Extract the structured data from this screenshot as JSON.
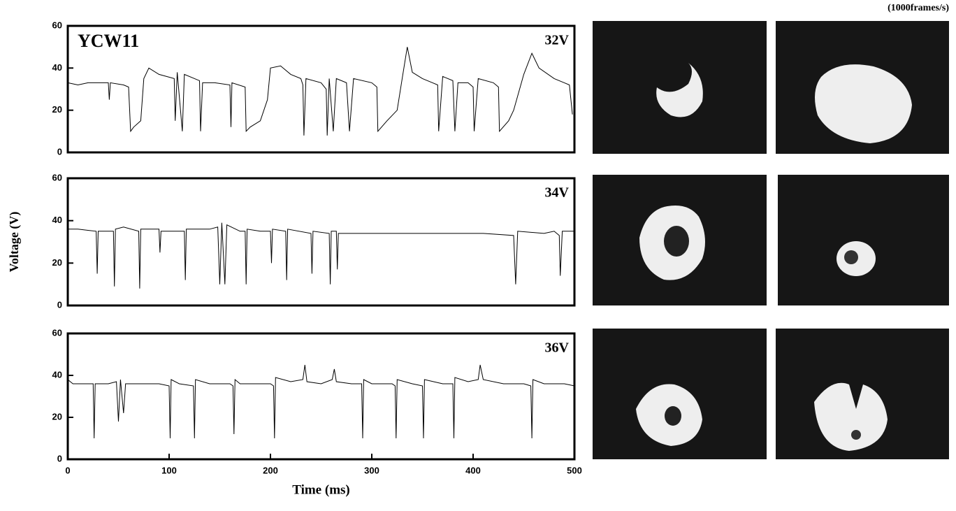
{
  "chart_data": [
    {
      "type": "line",
      "label": "YCW11",
      "setting": "32V",
      "annotation": "(1000frames/s)",
      "color": "#000000",
      "xlim": [
        0,
        500
      ],
      "ylim": [
        0,
        60
      ],
      "yticks": [
        0,
        20,
        40,
        60
      ],
      "x": [
        0,
        10,
        20,
        40,
        41,
        42,
        55,
        60,
        62,
        65,
        72,
        75,
        80,
        90,
        105,
        106,
        108,
        113,
        115,
        125,
        130,
        131,
        133,
        145,
        160,
        161,
        162,
        175,
        176,
        180,
        190,
        197,
        200,
        210,
        220,
        230,
        232,
        233,
        235,
        250,
        255,
        256,
        258,
        262,
        265,
        275,
        278,
        282,
        300,
        305,
        306,
        315,
        325,
        330,
        335,
        340,
        350,
        360,
        365,
        366,
        370,
        380,
        382,
        385,
        395,
        400,
        401,
        405,
        420,
        425,
        426,
        435,
        440,
        450,
        458,
        465,
        480,
        490,
        495,
        498
      ],
      "values": [
        33,
        32,
        33,
        33,
        25,
        33,
        32,
        31,
        10,
        12,
        15,
        35,
        40,
        37,
        35,
        15,
        38,
        10,
        37,
        35,
        34,
        10,
        33,
        33,
        32,
        12,
        33,
        31,
        10,
        12,
        15,
        25,
        40,
        41,
        37,
        35,
        32,
        8,
        35,
        33,
        30,
        8,
        35,
        10,
        35,
        33,
        10,
        35,
        33,
        31,
        10,
        15,
        20,
        35,
        50,
        38,
        35,
        33,
        32,
        10,
        36,
        34,
        10,
        33,
        33,
        31,
        10,
        35,
        33,
        31,
        10,
        15,
        20,
        37,
        47,
        40,
        35,
        33,
        32,
        18
      ]
    },
    {
      "type": "line",
      "setting": "34V",
      "ylabel": "Voltage (V)",
      "color": "#000000",
      "xlim": [
        0,
        500
      ],
      "ylim": [
        0,
        60
      ],
      "yticks": [
        0,
        20,
        40,
        60
      ],
      "x": [
        0,
        10,
        28,
        29,
        30,
        45,
        46,
        47,
        55,
        70,
        71,
        72,
        90,
        91,
        92,
        115,
        116,
        117,
        140,
        148,
        150,
        152,
        155,
        157,
        170,
        175,
        176,
        177,
        190,
        200,
        201,
        202,
        215,
        216,
        217,
        240,
        241,
        242,
        258,
        259,
        260,
        265,
        266,
        267,
        300,
        340,
        380,
        410,
        440,
        442,
        444,
        470,
        480,
        485,
        486,
        488,
        500
      ],
      "values": [
        36,
        36,
        35,
        15,
        35,
        35,
        9,
        36,
        37,
        35,
        8,
        36,
        36,
        25,
        35,
        35,
        12,
        36,
        36,
        37,
        10,
        39,
        10,
        38,
        35,
        35,
        10,
        36,
        35,
        35,
        20,
        36,
        35,
        12,
        36,
        34,
        15,
        35,
        34,
        10,
        35,
        35,
        17,
        34,
        34,
        34,
        34,
        34,
        33,
        10,
        35,
        34,
        35,
        33,
        14,
        35,
        35
      ]
    },
    {
      "type": "line",
      "setting": "36V",
      "xlabel": "Time (ms)",
      "color": "#000000",
      "xlim": [
        0,
        500
      ],
      "ylim": [
        0,
        60
      ],
      "yticks": [
        0,
        20,
        40,
        60
      ],
      "xticks": [
        0,
        100,
        200,
        300,
        400,
        500
      ],
      "x": [
        0,
        5,
        25,
        26,
        27,
        40,
        48,
        50,
        52,
        55,
        57,
        70,
        90,
        100,
        101,
        102,
        110,
        124,
        125,
        126,
        140,
        160,
        163,
        164,
        165,
        170,
        200,
        203,
        204,
        205,
        220,
        232,
        234,
        236,
        250,
        261,
        263,
        265,
        280,
        290,
        291,
        292,
        300,
        320,
        323,
        324,
        325,
        340,
        350,
        351,
        352,
        370,
        380,
        381,
        382,
        395,
        405,
        407,
        410,
        430,
        450,
        457,
        458,
        459,
        470,
        490,
        500
      ],
      "values": [
        38,
        36,
        36,
        10,
        36,
        36,
        37,
        18,
        38,
        22,
        36,
        36,
        36,
        35,
        10,
        38,
        36,
        35,
        10,
        38,
        36,
        36,
        35,
        12,
        38,
        36,
        36,
        35,
        10,
        39,
        37,
        38,
        45,
        37,
        36,
        38,
        43,
        37,
        36,
        36,
        10,
        38,
        36,
        36,
        35,
        10,
        38,
        36,
        35,
        10,
        38,
        36,
        36,
        10,
        39,
        37,
        38,
        45,
        38,
        36,
        36,
        35,
        10,
        38,
        36,
        36,
        35
      ]
    }
  ]
}
